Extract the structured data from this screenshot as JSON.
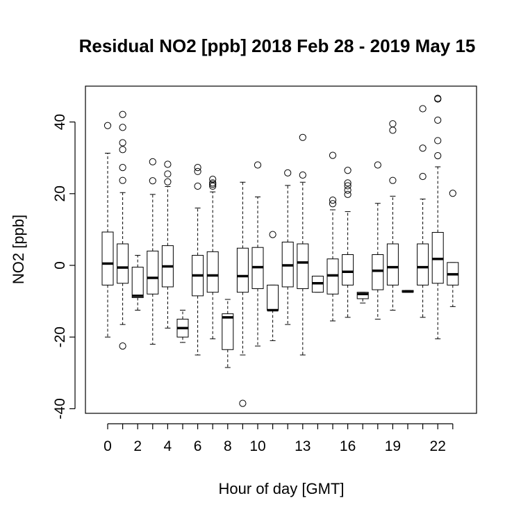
{
  "chart_data": {
    "type": "boxplot",
    "title": "Residual NO2 [ppb] 2018 Feb 28 - 2019 May 15",
    "xlabel": "Hour of day [GMT]",
    "ylabel": "NO2 [ppb]",
    "ylim": [
      -42,
      50
    ],
    "y_ticks": [
      -40,
      -20,
      0,
      20,
      40
    ],
    "x_tick_labels": [
      "0",
      "2",
      "4",
      "6",
      "8",
      "10",
      "13",
      "16",
      "19",
      "22"
    ],
    "x_tick_positions": [
      0,
      2,
      4,
      6,
      8,
      10,
      13,
      16,
      19,
      22
    ],
    "grid": false,
    "boxes": [
      {
        "hour": 0,
        "lw": -20,
        "q1": -5.5,
        "median": 0.5,
        "q3": 9.3,
        "uw": 31.3,
        "outliers": [
          39.0
        ]
      },
      {
        "hour": 1,
        "lw": -16.5,
        "q1": -5.0,
        "median": -0.6,
        "q3": 6.0,
        "uw": 20.3,
        "outliers": [
          42.1,
          38.5,
          34.2,
          32.3,
          27.3,
          23.7,
          -22.5
        ]
      },
      {
        "hour": 2,
        "lw": -12.5,
        "q1": -9.0,
        "median": -8.5,
        "q3": -0.5,
        "uw": 2.8,
        "outliers": []
      },
      {
        "hour": 3,
        "lw": -22,
        "q1": -8.0,
        "median": -3.5,
        "q3": 4.0,
        "uw": 19.8,
        "outliers": [
          28.9,
          23.6
        ]
      },
      {
        "hour": 4,
        "lw": -17.5,
        "q1": -6.0,
        "median": -0.3,
        "q3": 5.5,
        "uw": 22.0,
        "outliers": [
          28.2,
          25.5,
          23.3
        ]
      },
      {
        "hour": 5,
        "lw": -21.5,
        "q1": -20.0,
        "median": -17.5,
        "q3": -15.0,
        "uw": -12.5,
        "outliers": []
      },
      {
        "hour": 6,
        "lw": -25,
        "q1": -8.5,
        "median": -2.8,
        "q3": 2.8,
        "uw": 16.0,
        "outliers": [
          27.3,
          26.2,
          22.1
        ]
      },
      {
        "hour": 7,
        "lw": -20.5,
        "q1": -7.5,
        "median": -2.8,
        "q3": 3.8,
        "uw": 20.5,
        "outliers": [
          24.0,
          23.0,
          22.6,
          22.1
        ]
      },
      {
        "hour": 8,
        "lw": -28.5,
        "q1": -23.5,
        "median": -14.5,
        "q3": -13.5,
        "uw": -9.5,
        "outliers": []
      },
      {
        "hour": 9,
        "lw": -25,
        "q1": -7.5,
        "median": -3.0,
        "q3": 4.8,
        "uw": 23.2,
        "outliers": [
          -38.5
        ]
      },
      {
        "hour": 10,
        "lw": -22.5,
        "q1": -6.5,
        "median": -0.5,
        "q3": 5.0,
        "uw": 19.1,
        "outliers": [
          28.0
        ]
      },
      {
        "hour": 11,
        "lw": -21,
        "q1": -12.5,
        "median": -12.5,
        "q3": -5.5,
        "uw": -5.5,
        "outliers": [
          8.6
        ]
      },
      {
        "hour": 12,
        "lw": -16.5,
        "q1": -6.0,
        "median": 0.0,
        "q3": 6.5,
        "uw": 22.3,
        "outliers": [
          25.8
        ]
      },
      {
        "hour": 13,
        "lw": -25,
        "q1": -6.5,
        "median": 0.8,
        "q3": 6.0,
        "uw": 23.2,
        "outliers": [
          35.7,
          25.2
        ]
      },
      {
        "hour": 14,
        "lw": -7.5,
        "q1": -7.5,
        "median": -5.0,
        "q3": -3.0,
        "uw": -3.0,
        "outliers": []
      },
      {
        "hour": 15,
        "lw": -15.5,
        "q1": -8.0,
        "median": -2.8,
        "q3": 1.8,
        "uw": 15.5,
        "outliers": [
          30.7,
          18.2,
          17.2
        ]
      },
      {
        "hour": 16,
        "lw": -14.5,
        "q1": -5.5,
        "median": -1.8,
        "q3": 3.0,
        "uw": 15.0,
        "outliers": [
          26.5,
          23.0,
          22.2,
          21.0,
          19.8
        ]
      },
      {
        "hour": 17,
        "lw": -10.5,
        "q1": -9.3,
        "median": -8.0,
        "q3": -7.5,
        "uw": -7.5,
        "outliers": []
      },
      {
        "hour": 18,
        "lw": -15,
        "q1": -6.8,
        "median": -1.5,
        "q3": 3.0,
        "uw": 17.3,
        "outliers": [
          28.0
        ]
      },
      {
        "hour": 19,
        "lw": -12.5,
        "q1": -5.5,
        "median": -0.5,
        "q3": 6.0,
        "uw": 19.3,
        "outliers": [
          39.5,
          37.7,
          23.7
        ]
      },
      {
        "hour": 20,
        "lw": -7.5,
        "q1": -7.5,
        "median": -7.3,
        "q3": -7.0,
        "uw": -7.0,
        "outliers": []
      },
      {
        "hour": 21,
        "lw": -14.5,
        "q1": -5.5,
        "median": -0.5,
        "q3": 6.0,
        "uw": 18.5,
        "outliers": [
          43.7,
          32.7,
          24.8
        ]
      },
      {
        "hour": 22,
        "lw": -20.5,
        "q1": -5.0,
        "median": 1.8,
        "q3": 9.2,
        "uw": 27.5,
        "outliers": [
          46.6,
          46.4,
          40.5,
          34.8,
          30.6
        ]
      },
      {
        "hour": 23,
        "lw": -11.5,
        "q1": -5.5,
        "median": -2.5,
        "q3": 0.8,
        "uw": 0.8,
        "outliers": [
          20.1
        ]
      }
    ]
  }
}
